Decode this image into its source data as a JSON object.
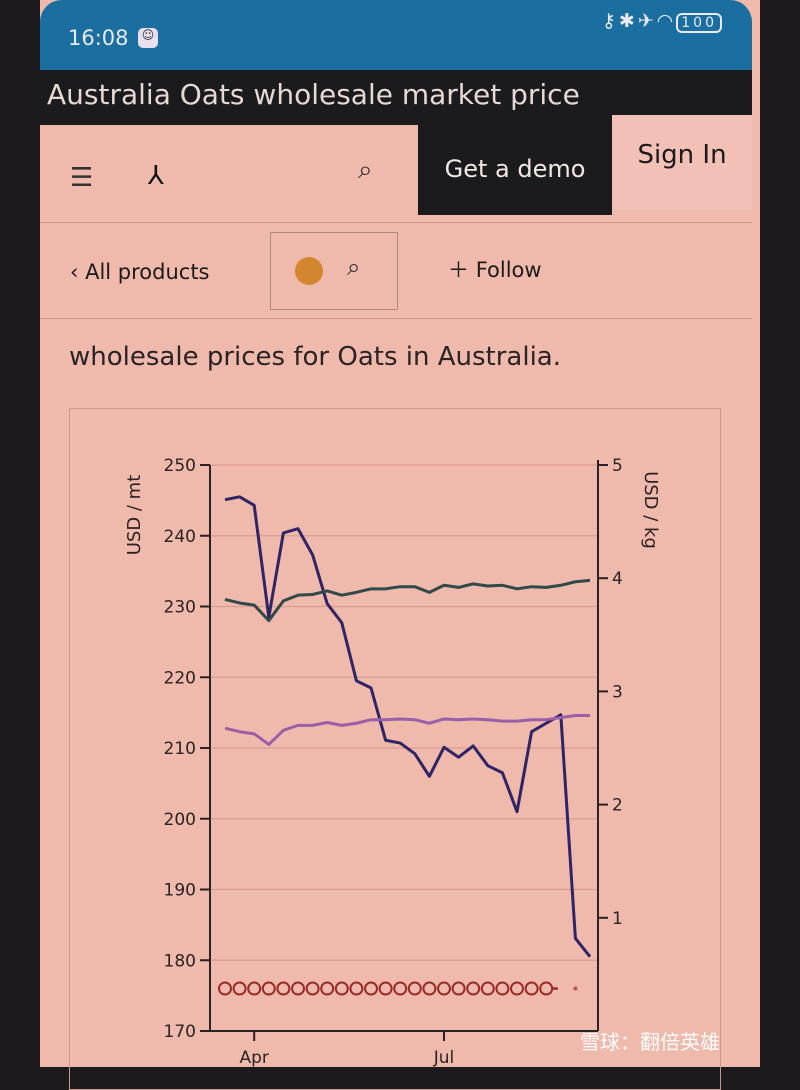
{
  "status_bar": {
    "time": "16:08",
    "battery": "100",
    "icons": [
      "key-icon",
      "bluetooth-icon",
      "airplane-icon",
      "wifi-icon",
      "battery-icon"
    ]
  },
  "page_title": "Australia Oats wholesale market price",
  "nav": {
    "get_demo": "Get a demo",
    "sign_in": "Sign In"
  },
  "subnav": {
    "back_label": "All products",
    "follow_label": "Follow"
  },
  "intro_text": "wholesale prices for Oats in Australia.",
  "watermark": "雪球：翻倍英雄",
  "chart_data": {
    "type": "line",
    "ylabel": "USD / mt",
    "y2label": "USD / kg",
    "ylim": [
      170,
      250
    ],
    "y2lim": [
      0,
      5
    ],
    "yticks": [
      170,
      180,
      190,
      200,
      210,
      220,
      230,
      240,
      250
    ],
    "y2ticks": [
      1,
      2,
      3,
      4,
      5
    ],
    "xtick_labels": [
      {
        "label": "Apr",
        "index": 2
      },
      {
        "label": "Jul",
        "index": 15
      }
    ],
    "grid": true,
    "series": [
      {
        "color": "#2e2466",
        "values": [
          245.1,
          245.5,
          244.3,
          228.5,
          240.4,
          241.0,
          237.3,
          230.4,
          227.7,
          219.5,
          218.5,
          211.1,
          210.7,
          209.2,
          206.0,
          210.1,
          208.7,
          210.3,
          207.5,
          206.5,
          201.0,
          212.3,
          213.5,
          214.7,
          183.1,
          180.5
        ]
      },
      {
        "color": "#2f4a48",
        "values": [
          231,
          230.5,
          230.2,
          228,
          230.8,
          231.6,
          231.7,
          232.2,
          231.6,
          232,
          232.5,
          232.5,
          232.8,
          232.8,
          232,
          233,
          232.7,
          233.2,
          232.9,
          233,
          232.5,
          232.8,
          232.7,
          233,
          233.5,
          233.7
        ]
      },
      {
        "color": "#9a5fa8",
        "values": [
          212.8,
          212.3,
          212,
          210.5,
          212.5,
          213.2,
          213.2,
          213.6,
          213.2,
          213.5,
          214,
          214,
          214.1,
          214,
          213.5,
          214.1,
          214,
          214.1,
          214,
          213.8,
          213.8,
          214,
          214,
          214.3,
          214.6,
          214.6
        ]
      },
      {
        "color": "#9a2a2a",
        "marker": "circle",
        "values": [
          176,
          176,
          176,
          176,
          176,
          176,
          176,
          176,
          176,
          176,
          176,
          176,
          176,
          176,
          176,
          176,
          176,
          176,
          176,
          176,
          176,
          176,
          176,
          null,
          176
        ]
      }
    ]
  }
}
